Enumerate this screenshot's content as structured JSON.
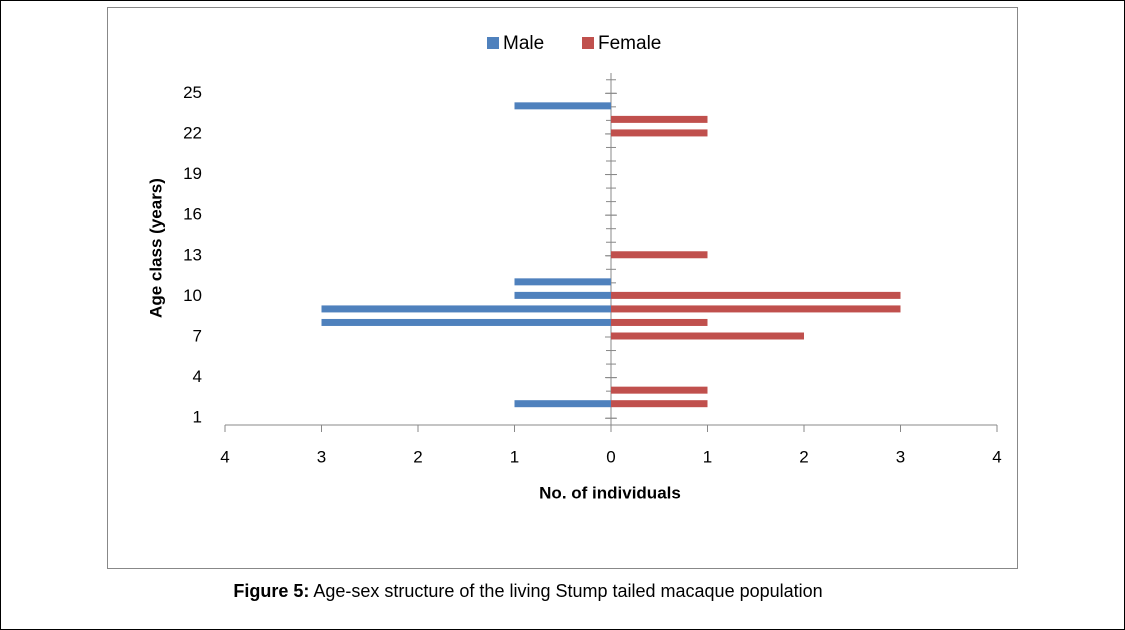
{
  "chart_data": {
    "type": "bar",
    "orientation": "horizontal",
    "y_label": "Age class (years)",
    "x_label": "No. of individuals",
    "y": [
      2,
      3,
      7,
      8,
      9,
      10,
      11,
      13,
      22,
      23,
      24
    ],
    "series": [
      {
        "name": "Male",
        "color": "#4f81bd",
        "values": [
          -1,
          null,
          null,
          -3,
          -3,
          -1,
          -1,
          null,
          null,
          null,
          -1
        ]
      },
      {
        "name": "Female",
        "color": "#c0504d",
        "values": [
          1,
          1,
          2,
          1,
          3,
          3,
          null,
          1,
          1,
          1,
          null
        ]
      }
    ],
    "xlim": [
      -4,
      4
    ],
    "xticks": [
      {
        "value": -4,
        "label": "4"
      },
      {
        "value": -3,
        "label": "3"
      },
      {
        "value": -2,
        "label": "2"
      },
      {
        "value": -1,
        "label": "1"
      },
      0,
      1,
      2,
      3,
      4
    ],
    "ylim": [
      0.5,
      26.5
    ],
    "yticks": [
      1,
      4,
      7,
      10,
      13,
      16,
      19,
      22,
      25
    ],
    "legend": "top"
  },
  "caption": {
    "label": "Figure 5:",
    "text": "Age-sex structure of the living Stump tailed macaque population"
  }
}
